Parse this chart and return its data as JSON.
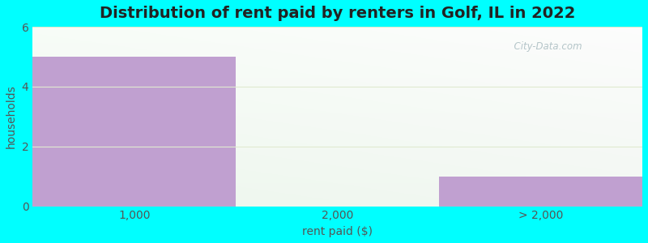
{
  "categories": [
    "1,000",
    "2,000",
    "> 2,000"
  ],
  "values": [
    5,
    0,
    1
  ],
  "bar_color": "#c0a0d0",
  "title": "Distribution of rent paid by renters in Golf, IL in 2022",
  "xlabel": "rent paid ($)",
  "ylabel": "households",
  "ylim": [
    0,
    6
  ],
  "yticks": [
    0,
    2,
    4,
    6
  ],
  "background_outer": "#00ffff",
  "title_fontsize": 14,
  "axis_label_fontsize": 10,
  "tick_fontsize": 10,
  "watermark_text": "  City-Data.com",
  "watermark_color": "#a8bcc0"
}
